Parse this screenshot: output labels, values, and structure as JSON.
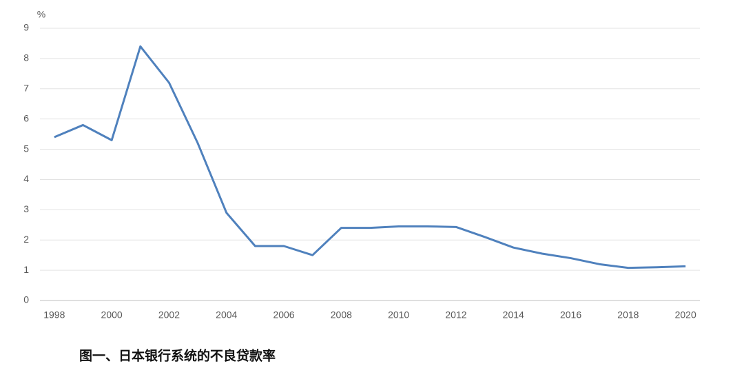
{
  "chart_data": {
    "type": "line",
    "y_label": "%",
    "caption": "图一、日本银行系统的不良贷款率",
    "x": [
      1998,
      1999,
      2000,
      2001,
      2002,
      2003,
      2004,
      2005,
      2006,
      2007,
      2008,
      2009,
      2010,
      2011,
      2012,
      2013,
      2014,
      2015,
      2016,
      2017,
      2018,
      2019,
      2020
    ],
    "series": [
      {
        "name": "不良贷款率",
        "color": "#4f81bd",
        "values": [
          5.4,
          5.8,
          5.3,
          8.4,
          7.2,
          5.2,
          2.9,
          1.8,
          1.8,
          1.5,
          2.4,
          2.4,
          2.45,
          2.45,
          2.43,
          2.1,
          1.75,
          1.55,
          1.4,
          1.2,
          1.08,
          1.1,
          1.13
        ]
      }
    ],
    "xlim": [
      1997.5,
      2020.5
    ],
    "xticks": [
      1998,
      2000,
      2002,
      2004,
      2006,
      2008,
      2010,
      2012,
      2014,
      2016,
      2018,
      2020
    ],
    "ylim": [
      0,
      9
    ],
    "yticks": [
      0,
      1,
      2,
      3,
      4,
      5,
      6,
      7,
      8,
      9
    ],
    "grid": true
  }
}
